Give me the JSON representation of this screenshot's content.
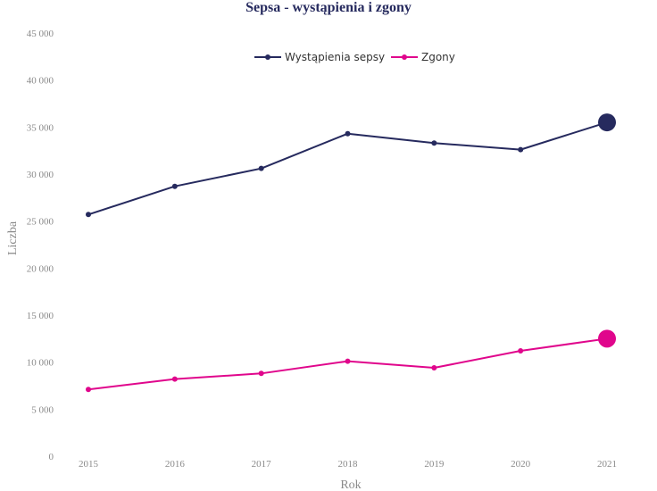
{
  "chart_data": {
    "type": "line",
    "title": "Sepsa - wystąpienia i zgony",
    "xlabel": "Rok",
    "ylabel": "Liczba",
    "categories": [
      "2015",
      "2016",
      "2017",
      "2018",
      "2019",
      "2020",
      "2021"
    ],
    "ylim": [
      0,
      45000
    ],
    "yticks": [
      0,
      5000,
      10000,
      15000,
      20000,
      25000,
      30000,
      35000,
      40000,
      45000
    ],
    "ytick_labels": [
      "0",
      "5 000",
      "10 000",
      "15 000",
      "20 000",
      "25 000",
      "30 000",
      "35 000",
      "40 000",
      "45 000"
    ],
    "grid": false,
    "legend_position": "top-center",
    "series": [
      {
        "name": "Wystąpienia sepsy",
        "color": "#262a5e",
        "values": [
          25700,
          28700,
          30600,
          34300,
          33300,
          32600,
          35500
        ],
        "highlight_last": true
      },
      {
        "name": "Zgony",
        "color": "#e0068c",
        "values": [
          7100,
          8200,
          8800,
          10100,
          9400,
          11200,
          12500
        ],
        "highlight_last": true
      }
    ]
  }
}
